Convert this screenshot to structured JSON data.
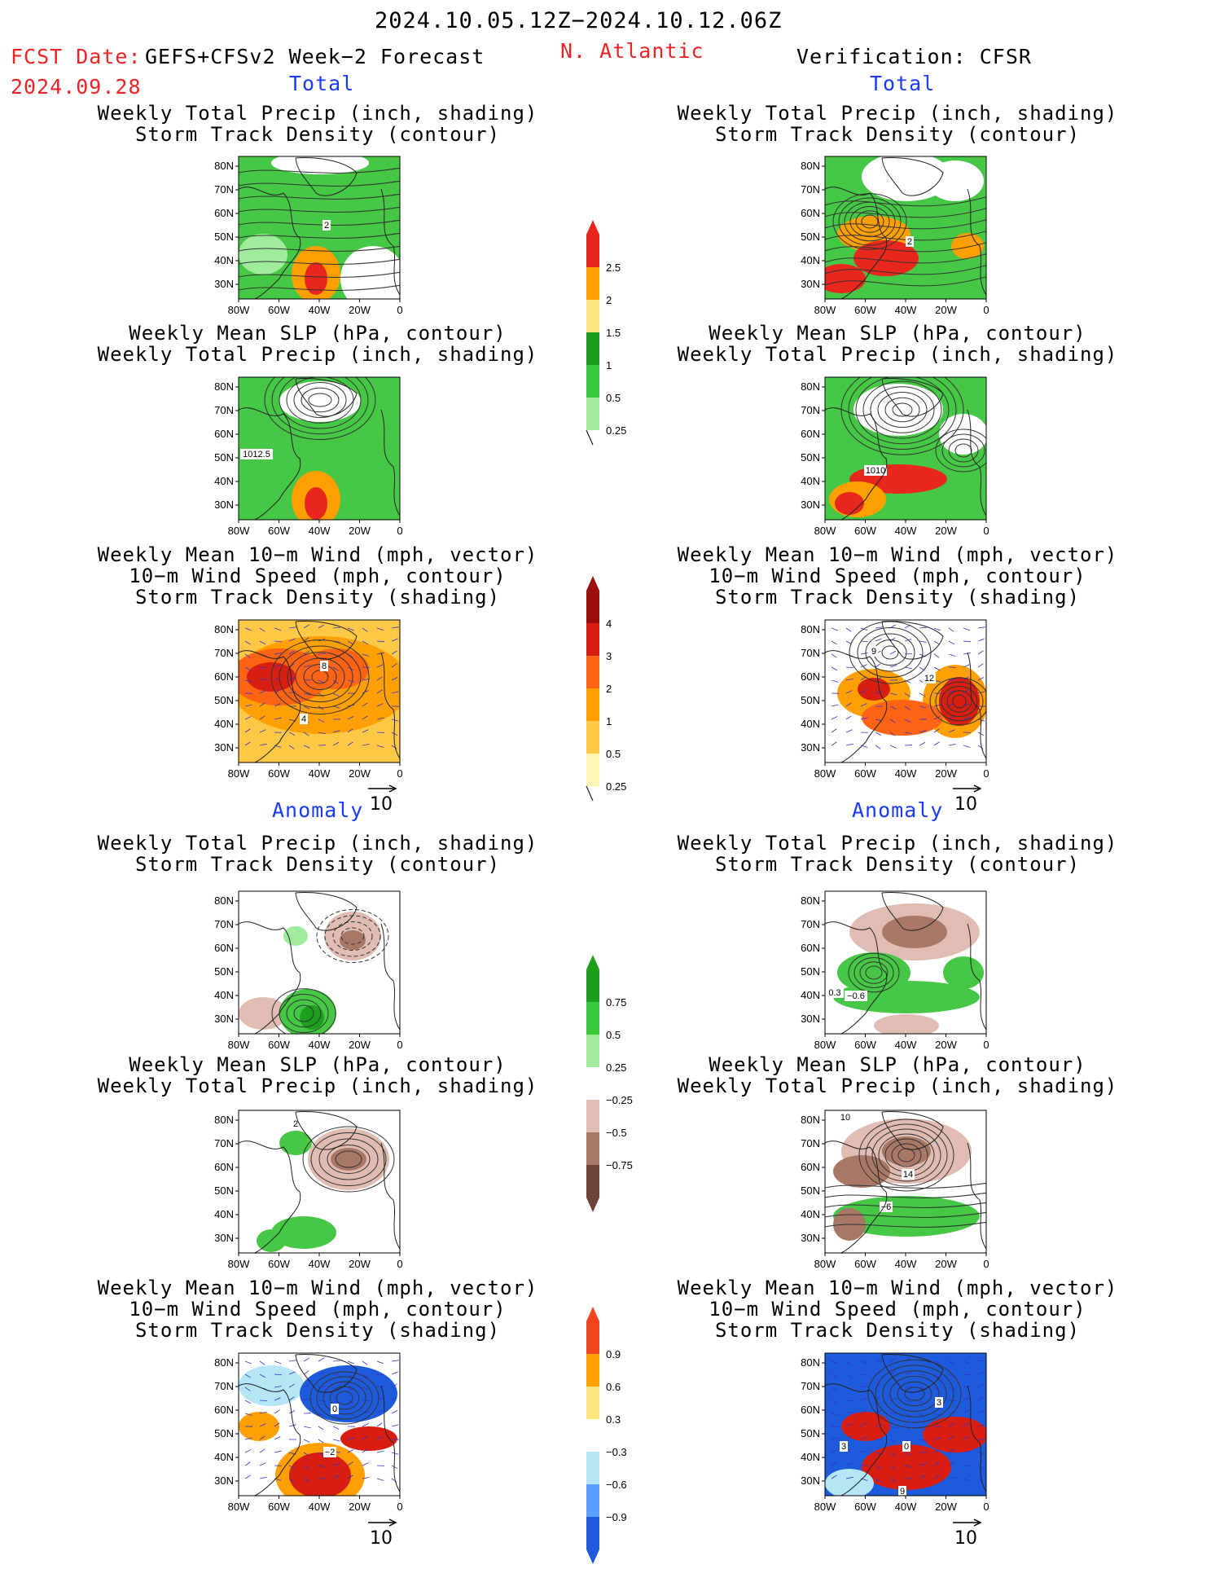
{
  "header": {
    "date_range": "2024.10.05.12Z−2024.10.12.06Z",
    "fcst_label": "FCST Date:",
    "fcst_model": "GEFS+CFSv2 Week−2 Forecast",
    "fcst_date": "2024.09.28",
    "region": "N. Atlantic",
    "verification": "Verification: CFSR"
  },
  "sections": {
    "total": "Total",
    "anomaly": "Anomaly"
  },
  "titles": {
    "precip_track": [
      "Weekly Total Precip (inch, shading)",
      "Storm Track Density (contour)"
    ],
    "slp_precip": [
      "Weekly Mean SLP (hPa, contour)",
      "Weekly Total Precip (inch, shading)"
    ],
    "wind_track": [
      "Weekly Mean 10−m Wind (mph, vector)",
      "10−m Wind Speed (mph, contour)",
      "Storm Track Density (shading)"
    ]
  },
  "axes": {
    "lat_labels": [
      "80N",
      "70N",
      "60N",
      "50N",
      "40N",
      "30N"
    ],
    "lon_labels": [
      "80W",
      "60W",
      "40W",
      "20W",
      "0"
    ]
  },
  "vector_ref": "10",
  "contour_labels": {
    "fcst_total_precip": "2",
    "fcst_total_slp": "1012.5",
    "fcst_total_wind_a": "8",
    "fcst_total_wind_b": "4",
    "ver_total_precip": "2",
    "ver_total_slp": "1010",
    "ver_total_wind_a": "9",
    "ver_total_wind_b": "12",
    "ver_anom_precip_a": "0.3",
    "ver_anom_precip_b": "−0.6",
    "fcst_anom_slp": "2",
    "ver_anom_slp_a": "10",
    "ver_anom_slp_b": "14",
    "ver_anom_slp_c": "−6",
    "fcst_anom_wind_a": "0",
    "fcst_anom_wind_b": "−2",
    "ver_anom_wind_a": "3",
    "ver_anom_wind_b": "0",
    "ver_anom_wind_c": "3",
    "ver_anom_wind_d": "9"
  },
  "colorbars": {
    "precip_total": {
      "labels": [
        "2.5",
        "2",
        "1.5",
        "1",
        "0.5",
        "0.25"
      ],
      "colors": [
        "#e8281e",
        "#ff9f00",
        "#ffe680",
        "#1e9e1e",
        "#3cc83c",
        "#a0eb9c"
      ]
    },
    "track_total": {
      "labels": [
        "4",
        "3",
        "2",
        "1",
        "0.5",
        "0.25"
      ],
      "colors": [
        "#9a0e0e",
        "#d81e10",
        "#ff6414",
        "#ff9f00",
        "#ffc846",
        "#fff5b4"
      ]
    },
    "precip_anom": {
      "labels": [
        "0.75",
        "0.5",
        "0.25",
        "−0.25",
        "−0.5",
        "−0.75"
      ],
      "colors": [
        "#1e9e1e",
        "#3cc83c",
        "#a0eb9c",
        "#ffffff",
        "#e0bcb2",
        "#a87866",
        "#6e4236"
      ]
    },
    "track_anom": {
      "labels": [
        "0.9",
        "0.6",
        "0.3",
        "−0.3",
        "−0.6",
        "−0.9"
      ],
      "colors": [
        "#f0461e",
        "#ff9f00",
        "#ffe680",
        "#ffffff",
        "#b4e6f5",
        "#5aa0ff",
        "#1e5adc"
      ]
    }
  },
  "colors": {
    "precip_green": "#46c846",
    "precip_light": "#a0eb9c",
    "precip_dark": "#1e9e1e",
    "precip_orange": "#ff9f00",
    "precip_red": "#e8281e",
    "anom_brown": "#a87866",
    "anom_tan": "#e0bcb2",
    "track_orange": "#ff9f00",
    "track_red": "#d81e10",
    "blue_dark": "#1e5adc",
    "blue_light": "#b4e6f5",
    "wind_vector": "#3232c8"
  }
}
